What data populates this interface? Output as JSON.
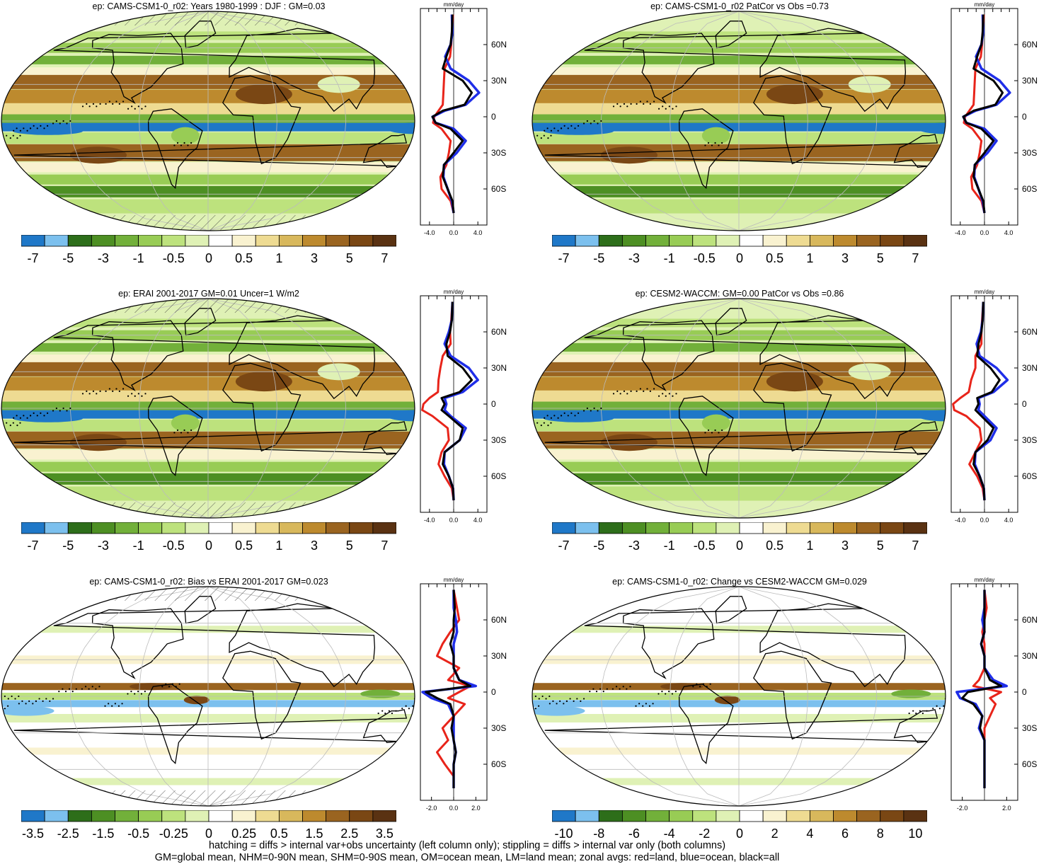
{
  "palette": [
    "#1f78c8",
    "#7cc0ee",
    "#2d6e1a",
    "#4d8f23",
    "#72b03a",
    "#98cc55",
    "#bde27d",
    "#dff1b5",
    "#ffffff",
    "#f9f2d0",
    "#eedb92",
    "#d8b85c",
    "#bd8a2e",
    "#9a6420",
    "#7a4714",
    "#5a3212"
  ],
  "panels": [
    {
      "id": "cams-djf-mean",
      "title": "ep: CAMS-CSM1-0_r02: Years 1980-1999 : DJF : GM=0.03",
      "hatched": true,
      "diff": false,
      "cbar_labels": [
        "-7",
        "-5",
        "-3",
        "-1",
        "-0.5",
        "0",
        "0.5",
        "1",
        "3",
        "5",
        "7"
      ],
      "zonal": {
        "units": "mm/day",
        "xticks": [
          "-4.0",
          "0.0",
          "4.0"
        ],
        "yticks": [
          "60N",
          "30N",
          "0",
          "30S",
          "60S"
        ],
        "xrange": [
          -5.5,
          5.5
        ],
        "lat": [
          85,
          70,
          60,
          50,
          40,
          30,
          20,
          10,
          5,
          0,
          -5,
          -10,
          -20,
          -30,
          -40,
          -50,
          -60,
          -70,
          -80
        ],
        "all": [
          -0.2,
          -0.3,
          -0.5,
          -1.2,
          -1.8,
          1.5,
          3.0,
          1.8,
          -1.8,
          -3.5,
          -3.0,
          -0.5,
          1.5,
          0.0,
          -1.6,
          -1.8,
          -1.0,
          -0.2,
          0.0
        ],
        "land": [
          -0.1,
          -0.3,
          -0.4,
          -0.6,
          -1.5,
          -1.6,
          -1.7,
          -1.8,
          -2.5,
          -3.2,
          -3.4,
          -2.0,
          -0.5,
          -0.8,
          -1.2,
          -2.2,
          -2.0,
          -0.5,
          0.0
        ],
        "ocean": [
          -0.3,
          -0.2,
          -0.5,
          -1.4,
          -0.5,
          2.5,
          4.2,
          2.0,
          -1.5,
          -3.5,
          -3.0,
          0.0,
          2.0,
          0.5,
          -1.6,
          -1.7,
          -1.0,
          -0.3,
          0.0
        ]
      }
    },
    {
      "id": "cams-patcor",
      "title": "ep: CAMS-CSM1-0_r02 PatCor vs Obs =0.73",
      "hatched": false,
      "diff": false,
      "cbar_labels": [
        "-7",
        "-5",
        "-3",
        "-1",
        "-0.5",
        "0",
        "0.5",
        "1",
        "3",
        "5",
        "7"
      ],
      "zonal": {
        "units": "mm/day",
        "xticks": [
          "-4.0",
          "0.0",
          "4.0"
        ],
        "yticks": [
          "60N",
          "30N",
          "0",
          "30S",
          "60S"
        ],
        "xrange": [
          -5.5,
          5.5
        ],
        "lat": [
          85,
          70,
          60,
          50,
          40,
          30,
          20,
          10,
          5,
          0,
          -5,
          -10,
          -20,
          -30,
          -40,
          -50,
          -60,
          -70,
          -80
        ],
        "all": [
          -0.2,
          -0.3,
          -0.5,
          -1.2,
          -1.8,
          1.5,
          3.0,
          1.8,
          -1.8,
          -3.5,
          -3.0,
          -0.5,
          1.5,
          0.0,
          -1.6,
          -1.8,
          -1.0,
          -0.2,
          0.0
        ],
        "land": [
          -0.1,
          -0.3,
          -0.4,
          -0.6,
          -1.5,
          -1.6,
          -1.7,
          -1.8,
          -2.5,
          -3.2,
          -3.4,
          -2.0,
          -0.5,
          -0.8,
          -1.2,
          -2.2,
          -2.0,
          -0.5,
          0.0
        ],
        "ocean": [
          -0.3,
          -0.2,
          -0.5,
          -1.4,
          -0.5,
          2.5,
          4.2,
          2.0,
          -1.5,
          -3.5,
          -3.0,
          0.0,
          2.0,
          0.5,
          -1.6,
          -1.7,
          -1.0,
          -0.3,
          0.0
        ]
      }
    },
    {
      "id": "erai-mean",
      "title": "ep: ERAI 2001-2017 GM=0.01 Uncer=1 W/m2",
      "hatched": true,
      "diff": false,
      "cbar_labels": [
        "-7",
        "-5",
        "-3",
        "-1",
        "-0.5",
        "0",
        "0.5",
        "1",
        "3",
        "5",
        "7"
      ],
      "zonal": {
        "units": "mm/day",
        "xticks": [
          "-4.0",
          "0.0",
          "4.0"
        ],
        "yticks": [
          "60N",
          "30N",
          "0",
          "30S",
          "60S"
        ],
        "xrange": [
          -5.5,
          5.5
        ],
        "lat": [
          85,
          70,
          60,
          50,
          40,
          30,
          20,
          10,
          5,
          0,
          -5,
          -10,
          -20,
          -30,
          -40,
          -50,
          -60,
          -70,
          -80
        ],
        "all": [
          -0.2,
          -0.3,
          -0.6,
          -1.2,
          -1.0,
          1.5,
          3.0,
          1.0,
          -2.0,
          -1.5,
          -2.0,
          -0.8,
          1.5,
          1.0,
          -1.5,
          -1.8,
          -0.8,
          -0.1,
          0.0
        ],
        "land": [
          -0.2,
          -0.4,
          -0.6,
          -0.5,
          -1.8,
          -2.2,
          -2.5,
          -2.6,
          -4.0,
          -5.0,
          -5.2,
          -3.5,
          -1.0,
          -0.8,
          -2.0,
          -2.5,
          -1.5,
          -0.3,
          0.0
        ],
        "ocean": [
          -0.2,
          -0.3,
          -0.8,
          -1.5,
          -0.5,
          2.5,
          4.0,
          1.5,
          -1.5,
          -1.2,
          -1.5,
          -0.5,
          2.0,
          1.0,
          -1.5,
          -1.6,
          -0.8,
          -0.1,
          0.0
        ]
      }
    },
    {
      "id": "cesm2-mean",
      "title": "ep: CESM2-WACCM: GM=0.00 PatCor vs Obs =0.86",
      "hatched": false,
      "diff": false,
      "cbar_labels": [
        "-7",
        "-5",
        "-3",
        "-1",
        "-0.5",
        "0",
        "0.5",
        "1",
        "3",
        "5",
        "7"
      ],
      "zonal": {
        "units": "mm/day",
        "xticks": [
          "-4.0",
          "0.0",
          "4.0"
        ],
        "yticks": [
          "60N",
          "30N",
          "0",
          "30S",
          "60S"
        ],
        "xrange": [
          -5.5,
          5.5
        ],
        "lat": [
          85,
          70,
          60,
          50,
          40,
          30,
          20,
          10,
          5,
          0,
          -5,
          -10,
          -20,
          -30,
          -40,
          -50,
          -60,
          -70,
          -80
        ],
        "all": [
          -0.2,
          -0.3,
          -0.5,
          -1.0,
          -1.2,
          1.0,
          2.5,
          1.2,
          -1.2,
          -1.0,
          -1.5,
          -0.5,
          1.5,
          0.5,
          -1.5,
          -1.8,
          -0.8,
          -0.1,
          0.0
        ],
        "land": [
          -0.2,
          -0.4,
          -0.5,
          -0.5,
          -1.5,
          -1.5,
          -2.2,
          -2.6,
          -4.0,
          -5.2,
          -5.0,
          -3.0,
          -0.8,
          -0.5,
          -1.5,
          -2.5,
          -1.2,
          -0.3,
          0.0
        ],
        "ocean": [
          -0.2,
          -0.3,
          -0.6,
          -1.3,
          -0.8,
          2.0,
          3.8,
          1.5,
          -1.0,
          -0.8,
          -1.0,
          0.0,
          2.0,
          1.0,
          -1.5,
          -1.6,
          -0.8,
          -0.1,
          0.0
        ]
      }
    },
    {
      "id": "bias-vs-erai",
      "title": "ep: CAMS-CSM1-0_r02: Bias vs ERAI 2001-2017 GM=0.023",
      "hatched": true,
      "diff": true,
      "cbar_labels": [
        "-3.5",
        "-2.5",
        "-1.5",
        "-0.5",
        "-0.25",
        "0",
        "0.25",
        "0.5",
        "1.5",
        "2.5",
        "3.5"
      ],
      "zonal": {
        "units": "mm/day",
        "xticks": [
          "-2.0",
          "0.0",
          "2.0"
        ],
        "yticks": [
          "60N",
          "30N",
          "0",
          "30S",
          "60S"
        ],
        "xrange": [
          -3.0,
          3.0
        ],
        "lat": [
          85,
          70,
          60,
          50,
          40,
          30,
          20,
          10,
          5,
          0,
          -5,
          -10,
          -20,
          -30,
          -40,
          -50,
          -60,
          -70,
          -80
        ],
        "all": [
          0.0,
          0.1,
          0.0,
          0.0,
          -0.3,
          0.0,
          0.0,
          0.5,
          1.5,
          -2.5,
          -1.5,
          -0.3,
          0.0,
          -0.2,
          0.0,
          0.2,
          0.0,
          0.0,
          0.0
        ],
        "land": [
          0.0,
          0.3,
          0.5,
          -0.3,
          -1.0,
          -1.5,
          0.5,
          -0.5,
          1.5,
          0.5,
          -0.5,
          1.0,
          0.0,
          -1.0,
          -0.5,
          -1.5,
          -0.8,
          0.0,
          0.0
        ],
        "ocean": [
          0.0,
          0.0,
          0.2,
          0.3,
          0.0,
          0.0,
          0.0,
          0.5,
          2.0,
          -2.8,
          -2.0,
          -0.5,
          0.0,
          0.0,
          0.0,
          0.2,
          0.0,
          0.0,
          0.0
        ]
      }
    },
    {
      "id": "change-vs-cesm2",
      "title": "ep: CAMS-CSM1-0_r02: Change vs CESM2-WACCM GM=0.029",
      "hatched": false,
      "diff": true,
      "cbar_labels": [
        "-10",
        "-8",
        "-6",
        "-4",
        "-2",
        "0",
        "2",
        "4",
        "6",
        "8",
        "10"
      ],
      "zonal": {
        "units": "mm/day",
        "xticks": [
          "-2.0",
          "2.0"
        ],
        "yticks": [
          "60N",
          "30N",
          "0",
          "30S",
          "60S"
        ],
        "xrange": [
          -3.0,
          3.0
        ],
        "lat": [
          85,
          70,
          60,
          50,
          40,
          30,
          20,
          10,
          5,
          0,
          -5,
          -10,
          -20,
          -30,
          -40,
          -50,
          -60,
          -70,
          -80
        ],
        "all": [
          0.0,
          0.0,
          0.0,
          0.0,
          -0.3,
          0.0,
          0.0,
          0.5,
          1.5,
          -1.5,
          -2.0,
          -1.0,
          -0.2,
          -0.4,
          0.0,
          0.0,
          0.0,
          0.0,
          0.0
        ],
        "land": [
          0.0,
          0.2,
          0.0,
          -0.2,
          0.0,
          0.0,
          0.0,
          -0.5,
          -1.0,
          1.5,
          0.5,
          1.0,
          0.5,
          0.0,
          0.0,
          0.0,
          0.0,
          0.0,
          0.0
        ],
        "ocean": [
          0.0,
          0.0,
          -0.2,
          0.0,
          -0.3,
          0.0,
          0.0,
          0.8,
          2.0,
          -2.5,
          -2.2,
          -0.8,
          -0.2,
          -0.5,
          0.0,
          0.0,
          0.0,
          0.0,
          0.0
        ]
      }
    }
  ],
  "footer": {
    "line1": "hatching = diffs > internal var+obs uncertainty (left column only); stippling = diffs > internal var only (both columns)",
    "line2": "GM=global mean, NHM=0-90N mean, SHM=0-90S mean, OM=ocean mean, LM=land mean; zonal avgs: red=land, blue=ocean, black=all"
  }
}
